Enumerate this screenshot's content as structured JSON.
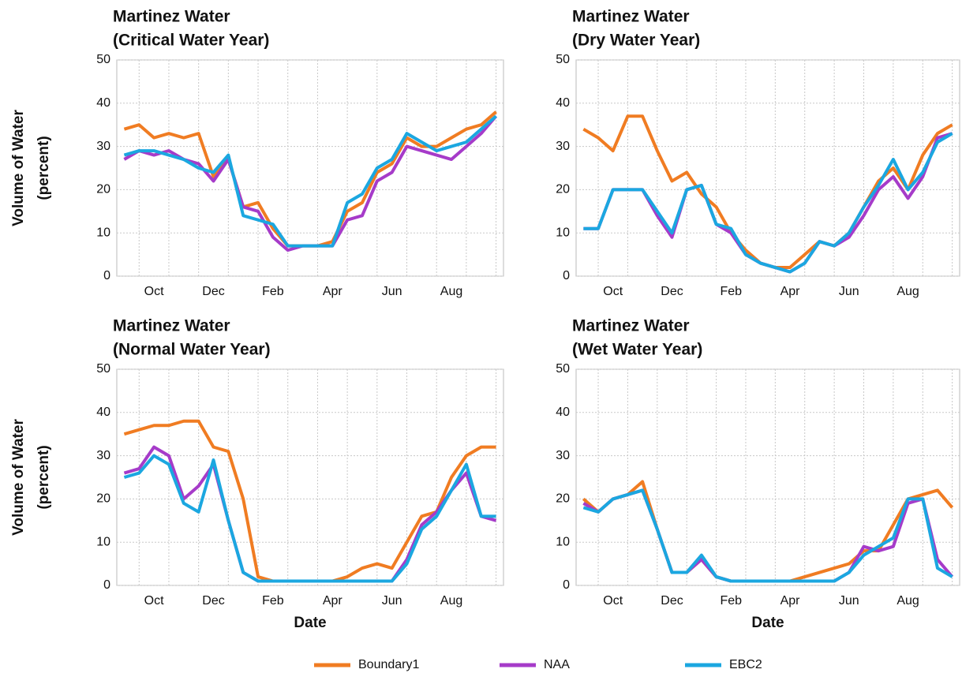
{
  "chart_data": [
    {
      "type": "line",
      "title": [
        "Martinez Water",
        "(Critical Water Year)"
      ],
      "y_label": [
        "Volume of Water",
        "(percent)"
      ],
      "categories": [
        null,
        null,
        "Oct",
        null,
        null,
        null,
        "Dec",
        null,
        null,
        null,
        "Feb",
        null,
        null,
        null,
        "Apr",
        null,
        null,
        null,
        "Jun",
        null,
        null,
        null,
        "Aug",
        null,
        null,
        null
      ],
      "series": [
        {
          "name": "Boundary1",
          "color": "#f07c22",
          "values": [
            34,
            35,
            32,
            33,
            32,
            33,
            23,
            27,
            16,
            17,
            11,
            7,
            7,
            7,
            8,
            15,
            17,
            24,
            26,
            32,
            30,
            30,
            32,
            34,
            35,
            38
          ]
        },
        {
          "name": "NAA",
          "color": "#a63bc9",
          "values": [
            27,
            29,
            28,
            29,
            27,
            26,
            22,
            27,
            16,
            15,
            9,
            6,
            7,
            7,
            7,
            13,
            14,
            22,
            24,
            30,
            29,
            28,
            27,
            30,
            33,
            37
          ]
        },
        {
          "name": "EBC2",
          "color": "#1ba7e0",
          "values": [
            28,
            29,
            29,
            28,
            27,
            25,
            24,
            28,
            14,
            13,
            12,
            7,
            7,
            7,
            7,
            17,
            19,
            25,
            27,
            33,
            31,
            29,
            30,
            31,
            34,
            37
          ]
        }
      ],
      "ylim": [
        0,
        50
      ],
      "yticks": [
        0,
        10,
        20,
        30,
        40,
        50
      ],
      "grid": true,
      "legend": "bottom"
    },
    {
      "type": "line",
      "title": [
        "Martinez Water",
        "(Dry Water Year)"
      ],
      "categories": [
        null,
        null,
        "Oct",
        null,
        null,
        null,
        "Dec",
        null,
        null,
        null,
        "Feb",
        null,
        null,
        null,
        "Apr",
        null,
        null,
        null,
        "Jun",
        null,
        null,
        null,
        "Aug",
        null,
        null,
        null
      ],
      "series": [
        {
          "name": "Boundary1",
          "color": "#f07c22",
          "values": [
            34,
            32,
            29,
            37,
            37,
            29,
            22,
            24,
            19,
            16,
            10,
            6,
            3,
            2,
            2,
            5,
            8,
            7,
            10,
            16,
            22,
            25,
            20,
            28,
            33,
            35
          ]
        },
        {
          "name": "NAA",
          "color": "#a63bc9",
          "values": [
            11,
            11,
            20,
            20,
            20,
            14,
            9,
            20,
            21,
            12,
            10,
            5,
            3,
            2,
            1,
            3,
            8,
            7,
            9,
            14,
            20,
            23,
            18,
            23,
            32,
            33
          ]
        },
        {
          "name": "EBC2",
          "color": "#1ba7e0",
          "values": [
            11,
            11,
            20,
            20,
            20,
            15,
            10,
            20,
            21,
            12,
            11,
            5,
            3,
            2,
            1,
            3,
            8,
            7,
            10,
            16,
            21,
            27,
            20,
            24,
            31,
            33
          ]
        }
      ],
      "ylim": [
        0,
        50
      ],
      "yticks": [
        0,
        10,
        20,
        30,
        40,
        50
      ],
      "grid": true
    },
    {
      "type": "line",
      "title": [
        "Martinez Water",
        "(Normal Water Year)"
      ],
      "y_label": [
        "Volume of Water",
        "(percent)"
      ],
      "x_label": "Date",
      "categories": [
        null,
        null,
        "Oct",
        null,
        null,
        null,
        "Dec",
        null,
        null,
        null,
        "Feb",
        null,
        null,
        null,
        "Apr",
        null,
        null,
        null,
        "Jun",
        null,
        null,
        null,
        "Aug",
        null,
        null,
        null
      ],
      "series": [
        {
          "name": "Boundary1",
          "color": "#f07c22",
          "values": [
            35,
            36,
            37,
            37,
            38,
            38,
            32,
            31,
            20,
            2,
            1,
            1,
            1,
            1,
            1,
            2,
            4,
            5,
            4,
            10,
            16,
            17,
            25,
            30,
            32,
            32
          ]
        },
        {
          "name": "NAA",
          "color": "#a63bc9",
          "values": [
            26,
            27,
            32,
            30,
            20,
            23,
            28,
            15,
            3,
            1,
            1,
            1,
            1,
            1,
            1,
            1,
            1,
            1,
            1,
            6,
            14,
            17,
            22,
            26,
            16,
            15
          ]
        },
        {
          "name": "EBC2",
          "color": "#1ba7e0",
          "values": [
            25,
            26,
            30,
            28,
            19,
            17,
            29,
            15,
            3,
            1,
            1,
            1,
            1,
            1,
            1,
            1,
            1,
            1,
            1,
            5,
            13,
            16,
            22,
            28,
            16,
            16
          ]
        }
      ],
      "ylim": [
        0,
        50
      ],
      "yticks": [
        0,
        10,
        20,
        30,
        40,
        50
      ],
      "grid": true
    },
    {
      "type": "line",
      "title": [
        "Martinez Water",
        "(Wet Water Year)"
      ],
      "x_label": "Date",
      "categories": [
        null,
        null,
        "Oct",
        null,
        null,
        null,
        "Dec",
        null,
        null,
        null,
        "Feb",
        null,
        null,
        null,
        "Apr",
        null,
        null,
        null,
        "Jun",
        null,
        null,
        null,
        "Aug",
        null,
        null,
        null
      ],
      "series": [
        {
          "name": "Boundary1",
          "color": "#f07c22",
          "values": [
            20,
            17,
            20,
            21,
            24,
            13,
            3,
            3,
            6,
            2,
            1,
            1,
            1,
            1,
            1,
            2,
            3,
            4,
            5,
            8,
            8,
            14,
            20,
            21,
            22,
            18
          ]
        },
        {
          "name": "NAA",
          "color": "#a63bc9",
          "values": [
            19,
            17,
            20,
            21,
            22,
            13,
            3,
            3,
            6,
            2,
            1,
            1,
            1,
            1,
            1,
            1,
            1,
            1,
            3,
            9,
            8,
            9,
            19,
            20,
            6,
            2
          ]
        },
        {
          "name": "EBC2",
          "color": "#1ba7e0",
          "values": [
            18,
            17,
            20,
            21,
            22,
            13,
            3,
            3,
            7,
            2,
            1,
            1,
            1,
            1,
            1,
            1,
            1,
            1,
            3,
            7,
            9,
            11,
            20,
            20,
            4,
            2
          ]
        }
      ],
      "ylim": [
        0,
        50
      ],
      "yticks": [
        0,
        10,
        20,
        30,
        40,
        50
      ],
      "grid": true
    }
  ]
}
